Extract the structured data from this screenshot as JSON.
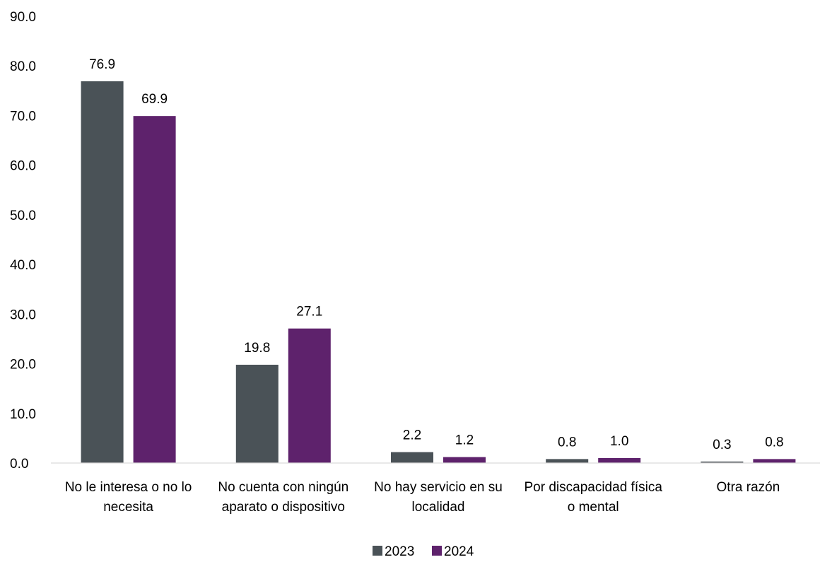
{
  "chart_data": {
    "type": "bar",
    "categories": [
      [
        "No le interesa o no lo",
        "necesita"
      ],
      [
        "No cuenta con ningún",
        "aparato o dispositivo"
      ],
      [
        "No hay servicio en su",
        "localidad"
      ],
      [
        "Por discapacidad física",
        "o mental"
      ],
      [
        "Otra razón"
      ]
    ],
    "series": [
      {
        "name": "2023",
        "color": "#4a5257",
        "values": [
          76.9,
          19.8,
          2.2,
          0.8,
          0.3
        ],
        "labels": [
          "76.9",
          "19.8",
          "2.2",
          "0.8",
          "0.3"
        ]
      },
      {
        "name": "2024",
        "color": "#5e226c",
        "values": [
          69.9,
          27.1,
          1.2,
          1.0,
          0.8
        ],
        "labels": [
          "69.9",
          "27.1",
          "1.2",
          "1.0",
          "0.8"
        ]
      }
    ],
    "ylim": [
      0,
      90
    ],
    "yticks": [
      "0.0",
      "10.0",
      "20.0",
      "30.0",
      "40.0",
      "50.0",
      "60.0",
      "70.0",
      "80.0",
      "90.0"
    ],
    "ytick_values": [
      0,
      10,
      20,
      30,
      40,
      50,
      60,
      70,
      80,
      90
    ],
    "grid": false,
    "legend_position": "bottom-center",
    "axis_color": "#d9d9d9"
  }
}
